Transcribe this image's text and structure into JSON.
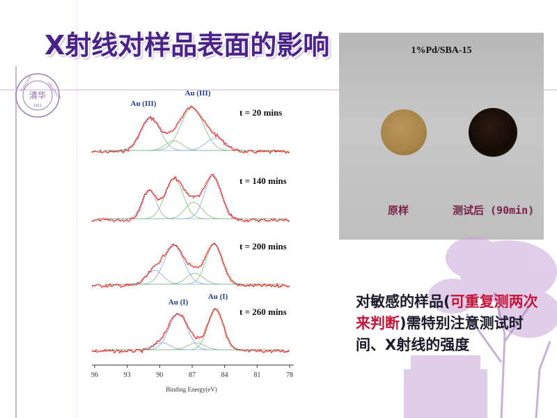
{
  "title": "X射线对样品表面的影响",
  "colors": {
    "title": "#4a2388",
    "spectrum": "#e0201c",
    "note_highlight": "#c4163b",
    "caption": "#7a1f48"
  },
  "spectra": {
    "peak_labels_top": [
      "Au (III)",
      "Au (III)"
    ],
    "peak_labels_bottom": [
      "Au (I)",
      "Au (I)"
    ],
    "time_labels": [
      "t = 20 mins",
      "t = 140 mins",
      "t = 200 mins",
      "t = 260 mins"
    ],
    "x_ticks": [
      "96",
      "93",
      "90",
      "87",
      "84",
      "81",
      "78"
    ],
    "x_label": "Binding Energy(eV)"
  },
  "photo": {
    "label": "1%Pd/SBA-15",
    "caption_left": "原样",
    "caption_right": "测试后 (90min)"
  },
  "note": {
    "part1": "对敏感的样品(",
    "part2": "可重复测两次来判断",
    "part3": ")需特别注意测试时间、X射线的强度"
  }
}
